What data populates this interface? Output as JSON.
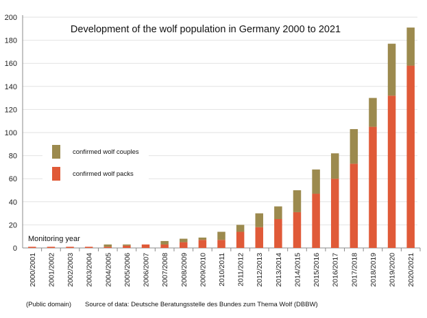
{
  "chart_data": {
    "type": "bar",
    "stacked": true,
    "title": "Development of the wolf population in Germany 2000 to 2021",
    "xlabel": "Monitoring year",
    "ylabel": "",
    "ylim": [
      0,
      200
    ],
    "yticks": [
      0,
      20,
      40,
      60,
      80,
      100,
      120,
      140,
      160,
      180,
      200
    ],
    "grid": true,
    "legend_position": "left",
    "categories": [
      "2000/2001",
      "2001/2002",
      "2002/2003",
      "2003/2004",
      "2004/2005",
      "2005/2006",
      "2006/2007",
      "2007/2008",
      "2008/2009",
      "2009/2010",
      "2010/2011",
      "2011/2012",
      "2012/2013",
      "2013/2014",
      "2014/2015",
      "2015/2016",
      "2016/2017",
      "2017/2018",
      "2018/2019",
      "2019/2020",
      "2020/2021"
    ],
    "series": [
      {
        "name": "confirmed wolf packs",
        "color": "#e05a38",
        "values": [
          1,
          1,
          1,
          1,
          1,
          2,
          3,
          3,
          5,
          7,
          7,
          14,
          18,
          25,
          31,
          47,
          60,
          73,
          105,
          132,
          158
        ]
      },
      {
        "name": "confirmed wolf couples",
        "color": "#9c8a4e",
        "values": [
          0,
          0,
          0,
          0,
          2,
          1,
          0,
          3,
          3,
          2,
          7,
          6,
          12,
          11,
          19,
          21,
          22,
          30,
          25,
          45,
          33
        ]
      }
    ]
  },
  "footer": {
    "license": "(Public domain)",
    "source": "Source of data: Deutsche Beratungsstelle des Bundes zum Thema Wolf (DBBW)"
  }
}
